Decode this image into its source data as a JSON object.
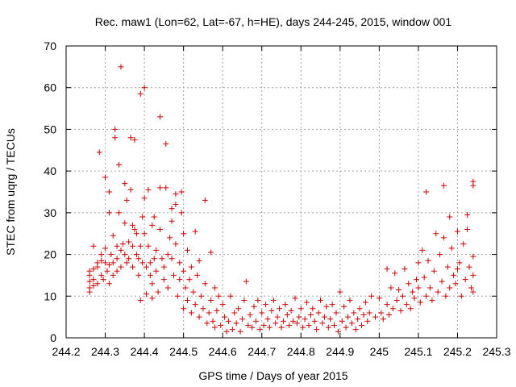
{
  "chart_data": {
    "type": "scatter",
    "title": "Rec. maw1 (Lon=62, Lat=-67, h=HE), days 244-245, 2015, window 001",
    "xlabel": "GPS time / Days of year 2015",
    "ylabel": "STEC from uqrg / TECUs",
    "xlim": [
      244.2,
      245.3
    ],
    "ylim": [
      0,
      70
    ],
    "x_ticks": [
      244.2,
      244.3,
      244.4,
      244.5,
      244.6,
      244.7,
      244.8,
      244.9,
      245.0,
      245.1,
      245.2,
      245.3
    ],
    "x_tick_labels": [
      "244.2",
      "244.3",
      "244.4",
      "244.5",
      "244.6",
      "244.7",
      "244.8",
      "244.9",
      "245",
      "245.1",
      "245.2",
      "245.3"
    ],
    "y_ticks": [
      0,
      10,
      20,
      30,
      40,
      50,
      60,
      70
    ],
    "y_tick_labels": [
      "0",
      "10",
      "20",
      "30",
      "40",
      "50",
      "60",
      "70"
    ],
    "grid": true,
    "marker": "plus",
    "marker_color": "#cc0000",
    "series": [
      {
        "points": [
          [
            244.26,
            12
          ],
          [
            244.26,
            13.5
          ],
          [
            244.26,
            15
          ],
          [
            244.26,
            16
          ],
          [
            244.26,
            11
          ],
          [
            244.27,
            22
          ],
          [
            244.27,
            14
          ],
          [
            244.27,
            16.5
          ],
          [
            244.27,
            12.5
          ],
          [
            244.28,
            13
          ],
          [
            244.28,
            17
          ],
          [
            244.28,
            18
          ],
          [
            244.285,
            44.5
          ],
          [
            244.29,
            20
          ],
          [
            244.29,
            15
          ],
          [
            244.29,
            18.5
          ],
          [
            244.295,
            14
          ],
          [
            244.3,
            38.5
          ],
          [
            244.3,
            18
          ],
          [
            244.3,
            21.5
          ],
          [
            244.305,
            16
          ],
          [
            244.31,
            35
          ],
          [
            244.31,
            30
          ],
          [
            244.31,
            13
          ],
          [
            244.31,
            17.5
          ],
          [
            244.315,
            20
          ],
          [
            244.32,
            24.5
          ],
          [
            244.32,
            18
          ],
          [
            244.32,
            15
          ],
          [
            244.325,
            50
          ],
          [
            244.325,
            48
          ],
          [
            244.33,
            22
          ],
          [
            244.33,
            16
          ],
          [
            244.33,
            19
          ],
          [
            244.335,
            41.5
          ],
          [
            244.335,
            30
          ],
          [
            244.34,
            65
          ],
          [
            244.34,
            17
          ],
          [
            244.34,
            21
          ],
          [
            244.345,
            22.5
          ],
          [
            244.35,
            37
          ],
          [
            244.35,
            27.5
          ],
          [
            244.35,
            20
          ],
          [
            244.355,
            33
          ],
          [
            244.355,
            18
          ],
          [
            244.36,
            19
          ],
          [
            244.36,
            23
          ],
          [
            244.365,
            48
          ],
          [
            244.365,
            35.5
          ],
          [
            244.37,
            22
          ],
          [
            244.37,
            27
          ],
          [
            244.37,
            17
          ],
          [
            244.375,
            47.5
          ],
          [
            244.375,
            26
          ],
          [
            244.38,
            20
          ],
          [
            244.38,
            25
          ],
          [
            244.385,
            15
          ],
          [
            244.385,
            19
          ],
          [
            244.39,
            58.5
          ],
          [
            244.39,
            9
          ],
          [
            244.39,
            22
          ],
          [
            244.395,
            29
          ],
          [
            244.395,
            18
          ],
          [
            244.4,
            60
          ],
          [
            244.4,
            33.5
          ],
          [
            244.4,
            25
          ],
          [
            244.405,
            17
          ],
          [
            244.405,
            10.5
          ],
          [
            244.41,
            35.5
          ],
          [
            244.41,
            22
          ],
          [
            244.415,
            15
          ],
          [
            244.415,
            18
          ],
          [
            244.42,
            27
          ],
          [
            244.42,
            13
          ],
          [
            244.42,
            9.5
          ],
          [
            244.425,
            29
          ],
          [
            244.425,
            19
          ],
          [
            244.43,
            21
          ],
          [
            244.43,
            16
          ],
          [
            244.435,
            11
          ],
          [
            244.44,
            53
          ],
          [
            244.44,
            36
          ],
          [
            244.44,
            26
          ],
          [
            244.445,
            19
          ],
          [
            244.45,
            17
          ],
          [
            244.45,
            14
          ],
          [
            244.455,
            46.5
          ],
          [
            244.455,
            36
          ],
          [
            244.46,
            20
          ],
          [
            244.46,
            12
          ],
          [
            244.465,
            24
          ],
          [
            244.47,
            31
          ],
          [
            244.47,
            28
          ],
          [
            244.47,
            19
          ],
          [
            244.475,
            15
          ],
          [
            244.48,
            32
          ],
          [
            244.48,
            34.5
          ],
          [
            244.48,
            22.5
          ],
          [
            244.485,
            10
          ],
          [
            244.49,
            18
          ],
          [
            244.49,
            14
          ],
          [
            244.495,
            35
          ],
          [
            244.495,
            30
          ],
          [
            244.5,
            25
          ],
          [
            244.5,
            16
          ],
          [
            244.5,
            7
          ],
          [
            244.505,
            12
          ],
          [
            244.51,
            21
          ],
          [
            244.51,
            9
          ],
          [
            244.515,
            14
          ],
          [
            244.52,
            17
          ],
          [
            244.52,
            6
          ],
          [
            244.525,
            11
          ],
          [
            244.53,
            25.5
          ],
          [
            244.53,
            8
          ],
          [
            244.535,
            15
          ],
          [
            244.54,
            18.5
          ],
          [
            244.54,
            5
          ],
          [
            244.545,
            10
          ],
          [
            244.55,
            7
          ],
          [
            244.555,
            33
          ],
          [
            244.555,
            13
          ],
          [
            244.56,
            3.5
          ],
          [
            244.565,
            6
          ],
          [
            244.57,
            20.5
          ],
          [
            244.57,
            9
          ],
          [
            244.575,
            4
          ],
          [
            244.58,
            12
          ],
          [
            244.58,
            2.5
          ],
          [
            244.585,
            6.5
          ],
          [
            244.59,
            10
          ],
          [
            244.595,
            3
          ],
          [
            244.6,
            8
          ],
          [
            244.605,
            5
          ],
          [
            244.61,
            1.5
          ],
          [
            244.615,
            4
          ],
          [
            244.62,
            10
          ],
          [
            244.625,
            2
          ],
          [
            244.63,
            6
          ],
          [
            244.635,
            3.5
          ],
          [
            244.64,
            7
          ],
          [
            244.645,
            1.5
          ],
          [
            244.65,
            4.5
          ],
          [
            244.655,
            9
          ],
          [
            244.66,
            13.5
          ],
          [
            244.665,
            3
          ],
          [
            244.67,
            5.5
          ],
          [
            244.675,
            2.5
          ],
          [
            244.68,
            7.5
          ],
          [
            244.685,
            4
          ],
          [
            244.69,
            9
          ],
          [
            244.695,
            2
          ],
          [
            244.7,
            6
          ],
          [
            244.705,
            3
          ],
          [
            244.71,
            8
          ],
          [
            244.715,
            4.5
          ],
          [
            244.72,
            2.5
          ],
          [
            244.725,
            6.5
          ],
          [
            244.73,
            9
          ],
          [
            244.735,
            3.5
          ],
          [
            244.74,
            5
          ],
          [
            244.745,
            7
          ],
          [
            244.75,
            2.5
          ],
          [
            244.755,
            4
          ],
          [
            244.76,
            8
          ],
          [
            244.765,
            5.5
          ],
          [
            244.77,
            3
          ],
          [
            244.775,
            6.5
          ],
          [
            244.78,
            4
          ],
          [
            244.785,
            9.5
          ],
          [
            244.79,
            3.5
          ],
          [
            244.795,
            5
          ],
          [
            244.8,
            7
          ],
          [
            244.805,
            2.5
          ],
          [
            244.81,
            4.5
          ],
          [
            244.815,
            8.5
          ],
          [
            244.82,
            3
          ],
          [
            244.825,
            5.5
          ],
          [
            244.83,
            7
          ],
          [
            244.835,
            4
          ],
          [
            244.84,
            2
          ],
          [
            244.845,
            6
          ],
          [
            244.85,
            9
          ],
          [
            244.855,
            3.5
          ],
          [
            244.86,
            5
          ],
          [
            244.865,
            7.5
          ],
          [
            244.87,
            2.5
          ],
          [
            244.875,
            4.5
          ],
          [
            244.88,
            8
          ],
          [
            244.885,
            3
          ],
          [
            244.89,
            6
          ],
          [
            244.895,
            1.5
          ],
          [
            244.9,
            11
          ],
          [
            244.905,
            4
          ],
          [
            244.91,
            7.5
          ],
          [
            244.915,
            2.5
          ],
          [
            244.92,
            5
          ],
          [
            244.925,
            9
          ],
          [
            244.93,
            3.5
          ],
          [
            244.935,
            6
          ],
          [
            244.94,
            2
          ],
          [
            244.945,
            4.5
          ],
          [
            244.95,
            7
          ],
          [
            244.955,
            3
          ],
          [
            244.96,
            5.5
          ],
          [
            244.965,
            8.5
          ],
          [
            244.97,
            4
          ],
          [
            244.975,
            6
          ],
          [
            244.98,
            10
          ],
          [
            244.99,
            5
          ],
          [
            245.0,
            9.5
          ],
          [
            245.005,
            6
          ],
          [
            245.01,
            4.5
          ],
          [
            245.02,
            16.5
          ],
          [
            245.02,
            8
          ],
          [
            245.025,
            5.5
          ],
          [
            245.03,
            12
          ],
          [
            245.035,
            7
          ],
          [
            245.04,
            15.5
          ],
          [
            245.045,
            9
          ],
          [
            245.05,
            11.5
          ],
          [
            245.055,
            6.5
          ],
          [
            245.06,
            10
          ],
          [
            245.065,
            16.5
          ],
          [
            245.07,
            8
          ],
          [
            245.075,
            13
          ],
          [
            245.08,
            7
          ],
          [
            245.085,
            11
          ],
          [
            245.09,
            9.5
          ],
          [
            245.095,
            14
          ],
          [
            245.1,
            18
          ],
          [
            245.1,
            12
          ],
          [
            245.105,
            8.5
          ],
          [
            245.11,
            21
          ],
          [
            245.115,
            14.5
          ],
          [
            245.12,
            35
          ],
          [
            245.12,
            10
          ],
          [
            245.125,
            18.5
          ],
          [
            245.13,
            12
          ],
          [
            245.135,
            9
          ],
          [
            245.14,
            16
          ],
          [
            245.145,
            25
          ],
          [
            245.15,
            11
          ],
          [
            245.155,
            20
          ],
          [
            245.16,
            13.5
          ],
          [
            245.165,
            36.5
          ],
          [
            245.165,
            24
          ],
          [
            245.17,
            10
          ],
          [
            245.175,
            17
          ],
          [
            245.18,
            29
          ],
          [
            245.18,
            12
          ],
          [
            245.185,
            21.5
          ],
          [
            245.19,
            15
          ],
          [
            245.195,
            13
          ],
          [
            245.2,
            25.5
          ],
          [
            245.2,
            16.5
          ],
          [
            245.205,
            18
          ],
          [
            245.21,
            10
          ],
          [
            245.215,
            22.5
          ],
          [
            245.22,
            14
          ],
          [
            245.225,
            29.5
          ],
          [
            245.225,
            26
          ],
          [
            245.23,
            17
          ],
          [
            245.235,
            12
          ],
          [
            245.24,
            37.5
          ],
          [
            245.24,
            36.5
          ],
          [
            245.24,
            19.5
          ],
          [
            245.24,
            15
          ],
          [
            245.24,
            11
          ]
        ]
      }
    ]
  }
}
